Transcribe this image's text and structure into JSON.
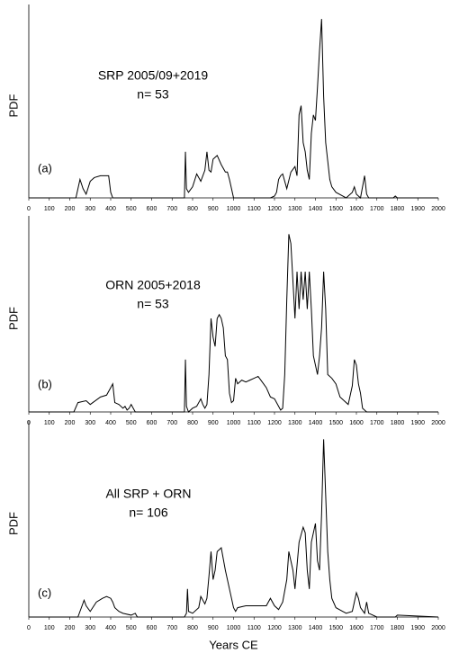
{
  "chart_data": [
    {
      "type": "line",
      "panel_label": "(a)",
      "annotation": [
        "SRP 2005/09+2019",
        "n= 53"
      ],
      "ylabel": "PDF",
      "x": [
        0,
        230,
        250,
        265,
        280,
        300,
        320,
        350,
        390,
        400,
        410,
        750,
        760,
        765,
        770,
        780,
        800,
        820,
        840,
        860,
        870,
        880,
        890,
        900,
        920,
        940,
        960,
        970,
        980,
        990,
        1000,
        1010,
        1150,
        1180,
        1200,
        1210,
        1220,
        1230,
        1240,
        1260,
        1280,
        1300,
        1310,
        1320,
        1330,
        1340,
        1350,
        1360,
        1370,
        1380,
        1390,
        1400,
        1410,
        1420,
        1430,
        1440,
        1450,
        1460,
        1470,
        1480,
        1500,
        1550,
        1580,
        1590,
        1600,
        1610,
        1620,
        1640,
        1650,
        1660,
        1700,
        1780,
        1790,
        1800,
        2000
      ],
      "values": [
        0,
        0,
        10,
        5,
        2,
        9,
        11,
        12,
        12,
        3,
        0,
        0,
        0,
        25,
        5,
        3,
        6,
        13,
        9,
        15,
        25,
        15,
        14,
        21,
        23,
        18,
        14,
        14,
        10,
        5,
        0,
        0,
        0,
        0,
        1,
        3,
        10,
        12,
        13,
        5,
        14,
        17,
        12,
        45,
        50,
        30,
        25,
        15,
        10,
        35,
        45,
        42,
        60,
        80,
        97,
        55,
        30,
        20,
        10,
        6,
        3,
        0,
        3,
        6,
        2,
        1,
        0,
        12,
        2,
        0,
        0,
        0,
        1,
        0,
        0
      ],
      "color": "#000000",
      "xlim": [
        0,
        2000
      ],
      "ylim": [
        0,
        100
      ],
      "xticks": [
        0,
        100,
        200,
        300,
        400,
        500,
        600,
        700,
        800,
        900,
        1000,
        1100,
        1200,
        1300,
        1400,
        1500,
        1600,
        1700,
        1800,
        1900,
        2000
      ]
    },
    {
      "type": "line",
      "panel_label": "(b)",
      "annotation": [
        "ORN 2005+2018",
        "n= 53"
      ],
      "ylabel": "PDF",
      "x": [
        0,
        220,
        240,
        280,
        300,
        350,
        380,
        400,
        410,
        420,
        440,
        460,
        470,
        480,
        490,
        500,
        510,
        520,
        750,
        760,
        765,
        770,
        780,
        800,
        820,
        840,
        850,
        860,
        870,
        880,
        890,
        900,
        910,
        920,
        930,
        940,
        950,
        960,
        970,
        980,
        990,
        1000,
        1010,
        1020,
        1040,
        1060,
        1080,
        1100,
        1120,
        1140,
        1160,
        1180,
        1200,
        1220,
        1230,
        1240,
        1250,
        1260,
        1270,
        1280,
        1290,
        1300,
        1310,
        1320,
        1330,
        1340,
        1350,
        1360,
        1370,
        1380,
        1390,
        1400,
        1410,
        1420,
        1430,
        1440,
        1450,
        1460,
        1480,
        1500,
        1520,
        1560,
        1580,
        1590,
        1600,
        1610,
        1620,
        1630,
        1650,
        2000
      ],
      "values": [
        0,
        0,
        5,
        6,
        4,
        8,
        9,
        13,
        15,
        5,
        4,
        2,
        3,
        1,
        2,
        4,
        2,
        0,
        0,
        0,
        28,
        3,
        0,
        2,
        3,
        7,
        4,
        2,
        4,
        20,
        50,
        40,
        35,
        50,
        52,
        50,
        45,
        30,
        28,
        10,
        5,
        6,
        18,
        15,
        17,
        16,
        17,
        18,
        19,
        16,
        13,
        8,
        7,
        3,
        1,
        2,
        20,
        60,
        95,
        90,
        70,
        50,
        75,
        55,
        75,
        60,
        75,
        55,
        75,
        55,
        30,
        25,
        20,
        30,
        45,
        75,
        55,
        20,
        18,
        15,
        8,
        4,
        14,
        28,
        25,
        15,
        10,
        2,
        0,
        0
      ],
      "color": "#000000",
      "xlim": [
        0,
        2000
      ],
      "ylim": [
        0,
        100
      ],
      "xticks": [
        0,
        100,
        200,
        300,
        400,
        500,
        600,
        700,
        800,
        900,
        1000,
        1100,
        1200,
        1300,
        1400,
        1500,
        1600,
        1700,
        1800,
        1900,
        2000
      ]
    },
    {
      "type": "line",
      "panel_label": "(c)",
      "annotation": [
        "All SRP + ORN",
        "n= 106"
      ],
      "ylabel": "PDF",
      "xlabel": "Years CE",
      "x": [
        0,
        240,
        250,
        270,
        280,
        300,
        330,
        360,
        380,
        400,
        410,
        420,
        440,
        460,
        500,
        520,
        530,
        750,
        760,
        770,
        775,
        780,
        800,
        830,
        840,
        860,
        870,
        880,
        890,
        900,
        910,
        920,
        940,
        960,
        980,
        990,
        1000,
        1010,
        1020,
        1060,
        1100,
        1150,
        1160,
        1180,
        1200,
        1220,
        1240,
        1260,
        1270,
        1280,
        1290,
        1300,
        1320,
        1340,
        1350,
        1360,
        1370,
        1380,
        1390,
        1400,
        1410,
        1420,
        1430,
        1440,
        1450,
        1460,
        1470,
        1480,
        1500,
        1550,
        1580,
        1600,
        1610,
        1620,
        1640,
        1650,
        1660,
        1700,
        1790,
        1800,
        2000
      ],
      "values": [
        0,
        0,
        3,
        9,
        6,
        3,
        8,
        10,
        11,
        10,
        8,
        5,
        3,
        2,
        1,
        2,
        0,
        0,
        0,
        2,
        15,
        3,
        2,
        5,
        11,
        7,
        10,
        22,
        35,
        20,
        25,
        35,
        37,
        25,
        15,
        10,
        5,
        3,
        5,
        6,
        6,
        6,
        6,
        10,
        6,
        4,
        8,
        20,
        35,
        30,
        25,
        15,
        40,
        48,
        45,
        25,
        15,
        40,
        45,
        50,
        30,
        25,
        55,
        95,
        65,
        35,
        20,
        10,
        5,
        2,
        3,
        13,
        10,
        5,
        2,
        8,
        2,
        0,
        0,
        1,
        0
      ],
      "color": "#000000",
      "xlim": [
        0,
        2000
      ],
      "ylim": [
        0,
        100
      ],
      "xticks": [
        0,
        100,
        200,
        300,
        400,
        500,
        600,
        700,
        800,
        900,
        1000,
        1100,
        1200,
        1300,
        1400,
        1500,
        1600,
        1700,
        1800,
        1900,
        2000
      ]
    }
  ]
}
